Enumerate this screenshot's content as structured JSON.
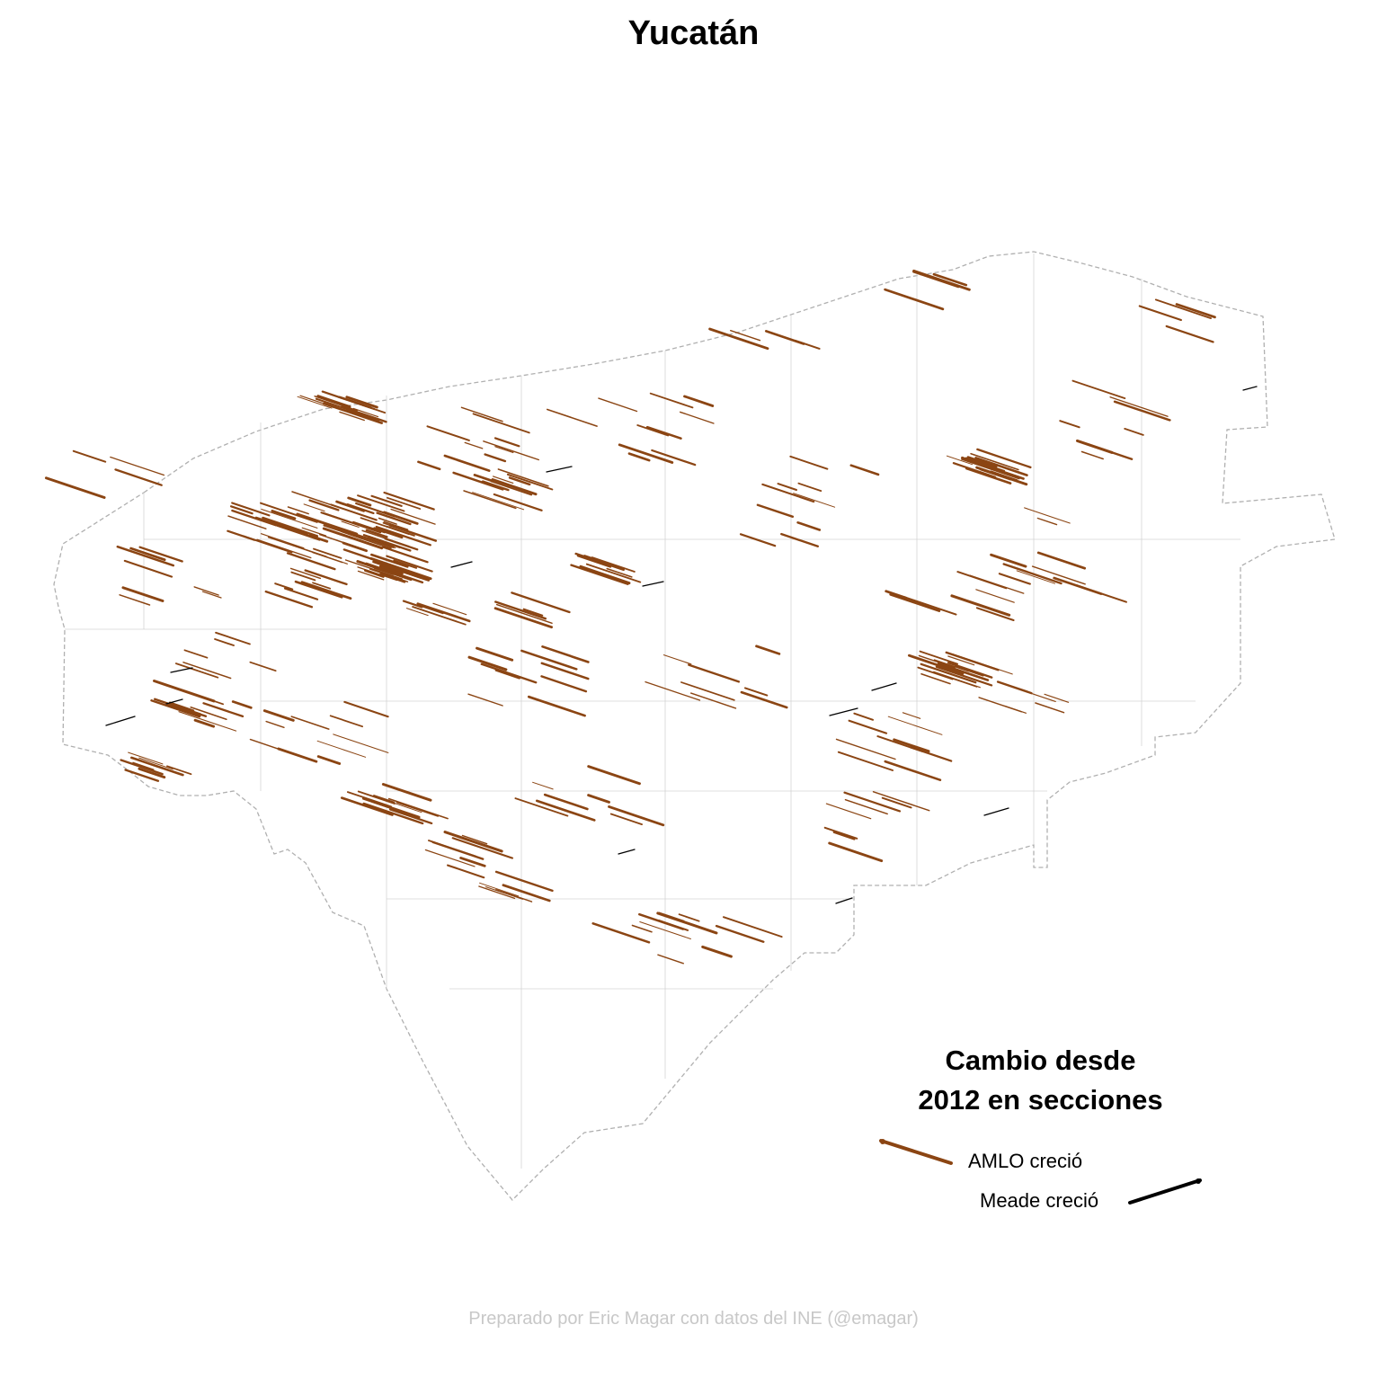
{
  "title": "Yucatán",
  "legend": {
    "title_line1": "Cambio desde",
    "title_line2": "2012 en secciones",
    "items": [
      {
        "label": "AMLO creció",
        "color": "#8B4513"
      },
      {
        "label": "Meade creció",
        "color": "#000000"
      }
    ]
  },
  "credit": "Preparado por Eric Magar con datos del INE (@emagar)",
  "colors": {
    "amlo": "#8B4513",
    "meade": "#000000",
    "border": "#b0b0b0"
  }
}
